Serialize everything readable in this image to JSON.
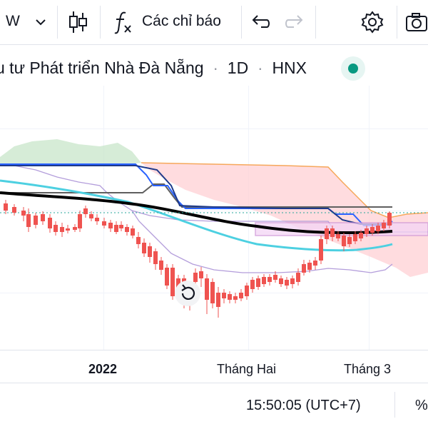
{
  "toolbar": {
    "interval_label": "W",
    "indicators_label": "Các chỉ báo",
    "icons": [
      "chevron-down-icon",
      "candlestick-icon",
      "function-icon",
      "undo-icon",
      "redo-icon",
      "gear-icon",
      "camera-icon"
    ]
  },
  "symbol": {
    "name": "u tư Phát triển Nhà Đà Nẵng",
    "interval": "1D",
    "exchange": "HNX",
    "status_color": "#089981"
  },
  "time_axis": {
    "labels": [
      "2022",
      "Tháng Hai",
      "Tháng 3"
    ]
  },
  "footer": {
    "clock": "15:50:05 (UTC+7)",
    "percent_label": "%"
  },
  "colors": {
    "up": "#26a69a",
    "down": "#ef5350",
    "baseline": "#000000",
    "cloud_bull": "#c8e6c9",
    "cloud_bear": "#ffcdd2",
    "kijun": "#1e3a8a",
    "tenkan": "#2962ff",
    "chikou": "#5f5f5f",
    "lagging": "#f6a85b",
    "ma": "#4dd0e1",
    "donchian": "#b39ddb",
    "range_box": "#ce93d8"
  }
}
